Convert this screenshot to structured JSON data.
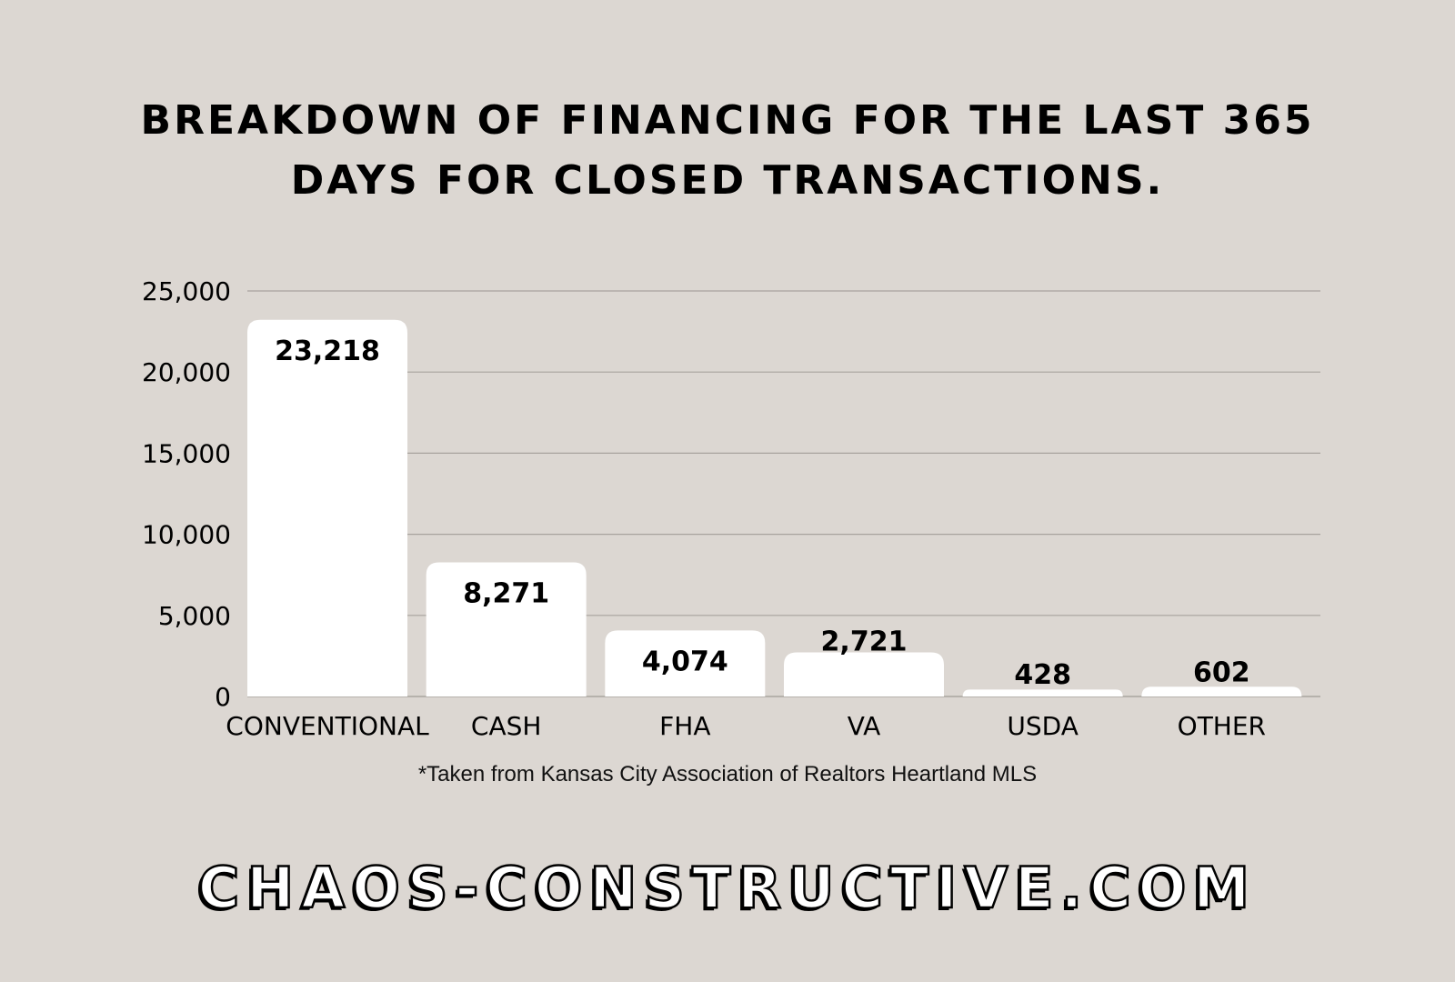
{
  "title": "BREAKDOWN OF FINANCING FOR THE LAST 365 DAYS FOR CLOSED TRANSACTIONS.",
  "footnote": "*Taken from Kansas City Association of Realtors Heartland MLS",
  "brand": "CHAOS-CONSTRUCTIVE.COM",
  "colors": {
    "background": "#dcd7d2",
    "bar": "#ffffff",
    "gridline": "#a8a39e",
    "text": "#000000"
  },
  "chart_data": {
    "type": "bar",
    "title": "BREAKDOWN OF FINANCING FOR THE LAST 365 DAYS FOR CLOSED TRANSACTIONS.",
    "xlabel": "",
    "ylabel": "",
    "categories": [
      "CONVENTIONAL",
      "CASH",
      "FHA",
      "VA",
      "USDA",
      "OTHER"
    ],
    "values": [
      23218,
      8271,
      4074,
      2721,
      428,
      602
    ],
    "data_labels": [
      "23,218",
      "8,271",
      "4,074",
      "2,721",
      "428",
      "602"
    ],
    "ylim": [
      0,
      25000
    ],
    "y_ticks": [
      0,
      5000,
      10000,
      15000,
      20000,
      25000
    ],
    "y_tick_labels": [
      "0",
      "5,000",
      "10,000",
      "15,000",
      "20,000",
      "25,000"
    ],
    "grid": true,
    "legend": "none"
  }
}
